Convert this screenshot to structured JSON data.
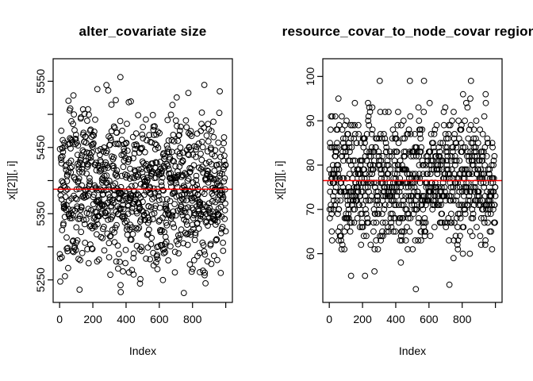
{
  "figure": {
    "background": "#ffffff",
    "axis_color": "#000000"
  },
  "chart_data": [
    {
      "type": "scatter",
      "title": "alter_covariate size",
      "xlabel": "Index",
      "ylabel": "x[[2]][, i]",
      "xlim": [
        -39,
        1040
      ],
      "ylim": [
        5216,
        5584
      ],
      "grid": false,
      "legend": false,
      "x_ticks": [
        {
          "value": 0,
          "label": "0"
        },
        {
          "value": 200,
          "label": "200"
        },
        {
          "value": 400,
          "label": "400"
        },
        {
          "value": 600,
          "label": "600"
        },
        {
          "value": 800,
          "label": "800"
        },
        {
          "value": 1000,
          "label": ""
        }
      ],
      "y_ticks": [
        {
          "value": 5250,
          "label": "5250"
        },
        {
          "value": 5300,
          "label": ""
        },
        {
          "value": 5350,
          "label": "5350"
        },
        {
          "value": 5400,
          "label": ""
        },
        {
          "value": 5450,
          "label": "5450"
        },
        {
          "value": 5500,
          "label": ""
        },
        {
          "value": 5550,
          "label": "5550"
        }
      ],
      "points": {
        "n": 1000,
        "x_start": 1,
        "x_end": 1000,
        "distribution": "normal",
        "mean": 5387,
        "sd": 60,
        "y_min": 5225,
        "y_max": 5575,
        "discrete": false
      },
      "mean_line": {
        "value": 5387,
        "color": "#ff0000"
      },
      "point_style": {
        "shape": "open-circle",
        "stroke": "#000000",
        "radius": 3.4
      }
    },
    {
      "type": "scatter",
      "title": "resource_covar_to_node_covar region",
      "xlabel": "Index",
      "ylabel": "x[[2]][, i]",
      "xlim": [
        -39,
        1040
      ],
      "ylim": [
        49,
        104
      ],
      "grid": false,
      "legend": false,
      "x_ticks": [
        {
          "value": 0,
          "label": "0"
        },
        {
          "value": 200,
          "label": "200"
        },
        {
          "value": 400,
          "label": "400"
        },
        {
          "value": 600,
          "label": "600"
        },
        {
          "value": 800,
          "label": "800"
        },
        {
          "value": 1000,
          "label": ""
        }
      ],
      "y_ticks": [
        {
          "value": 60,
          "label": "60"
        },
        {
          "value": 70,
          "label": "70"
        },
        {
          "value": 80,
          "label": "80"
        },
        {
          "value": 90,
          "label": "90"
        },
        {
          "value": 100,
          "label": "100"
        }
      ],
      "points": {
        "n": 1000,
        "x_start": 1,
        "x_end": 1000,
        "distribution": "normal",
        "mean": 76.5,
        "sd": 7.5,
        "y_min": 51,
        "y_max": 101,
        "discrete": true
      },
      "mean_line": {
        "value": 76.5,
        "color": "#ff0000"
      },
      "point_style": {
        "shape": "open-circle",
        "stroke": "#000000",
        "radius": 3.4
      }
    }
  ]
}
